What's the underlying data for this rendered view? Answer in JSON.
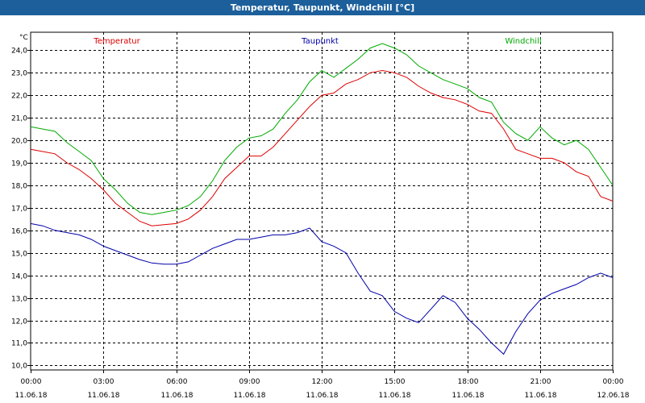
{
  "window": {
    "title": "Temperatur, Taupunkt, Windchill [°C]"
  },
  "chart_data": {
    "type": "line",
    "title": "Temperatur, Taupunkt, Windchill [°C]",
    "ylabel": "°C",
    "ylim": [
      9.8,
      24.8
    ],
    "xlim": [
      0,
      24
    ],
    "grid": true,
    "yticks": [
      {
        "value": 10.0,
        "label": "10,0"
      },
      {
        "value": 11.0,
        "label": "11,0"
      },
      {
        "value": 12.0,
        "label": "12,0"
      },
      {
        "value": 13.0,
        "label": "13,0"
      },
      {
        "value": 14.0,
        "label": "14,0"
      },
      {
        "value": 15.0,
        "label": "15,0"
      },
      {
        "value": 16.0,
        "label": "16,0"
      },
      {
        "value": 17.0,
        "label": "17,0"
      },
      {
        "value": 18.0,
        "label": "18,0"
      },
      {
        "value": 19.0,
        "label": "19,0"
      },
      {
        "value": 20.0,
        "label": "20,0"
      },
      {
        "value": 21.0,
        "label": "21,0"
      },
      {
        "value": 22.0,
        "label": "22,0"
      },
      {
        "value": 23.0,
        "label": "23,0"
      },
      {
        "value": 24.0,
        "label": "24,0"
      }
    ],
    "xticks": [
      {
        "value": 0,
        "time": "00:00",
        "date": "11.06.18"
      },
      {
        "value": 3,
        "time": "03:00",
        "date": "11.06.18"
      },
      {
        "value": 6,
        "time": "06:00",
        "date": "11.06.18"
      },
      {
        "value": 9,
        "time": "09:00",
        "date": "11.06.18"
      },
      {
        "value": 12,
        "time": "12:00",
        "date": "11.06.18"
      },
      {
        "value": 15,
        "time": "15:00",
        "date": "11.06.18"
      },
      {
        "value": 18,
        "time": "18:00",
        "date": "11.06.18"
      },
      {
        "value": 21,
        "time": "21:00",
        "date": "11.06.18"
      },
      {
        "value": 24,
        "time": "00:00",
        "date": "12.06.18"
      }
    ],
    "series": [
      {
        "name": "Temperatur",
        "color": "#dd0000",
        "legend_position": "left",
        "points": [
          [
            0,
            19.6
          ],
          [
            0.5,
            19.5
          ],
          [
            1,
            19.4
          ],
          [
            1.5,
            19.0
          ],
          [
            2,
            18.7
          ],
          [
            2.5,
            18.3
          ],
          [
            3,
            17.8
          ],
          [
            3.5,
            17.2
          ],
          [
            4,
            16.8
          ],
          [
            4.5,
            16.4
          ],
          [
            5,
            16.2
          ],
          [
            5.5,
            16.25
          ],
          [
            6,
            16.3
          ],
          [
            6.5,
            16.5
          ],
          [
            7,
            16.9
          ],
          [
            7.5,
            17.5
          ],
          [
            8,
            18.3
          ],
          [
            8.5,
            18.8
          ],
          [
            9,
            19.3
          ],
          [
            9.5,
            19.3
          ],
          [
            10,
            19.7
          ],
          [
            10.5,
            20.3
          ],
          [
            11,
            20.9
          ],
          [
            11.5,
            21.5
          ],
          [
            12,
            22.0
          ],
          [
            12.5,
            22.1
          ],
          [
            13,
            22.5
          ],
          [
            13.5,
            22.7
          ],
          [
            14,
            23.0
          ],
          [
            14.5,
            23.1
          ],
          [
            15,
            23.0
          ],
          [
            15.5,
            22.8
          ],
          [
            16,
            22.4
          ],
          [
            16.5,
            22.1
          ],
          [
            17,
            21.9
          ],
          [
            17.5,
            21.8
          ],
          [
            18,
            21.6
          ],
          [
            18.5,
            21.3
          ],
          [
            19,
            21.2
          ],
          [
            19.5,
            20.5
          ],
          [
            20,
            19.6
          ],
          [
            20.5,
            19.4
          ],
          [
            21,
            19.2
          ],
          [
            21.5,
            19.2
          ],
          [
            22,
            19.0
          ],
          [
            22.5,
            18.6
          ],
          [
            23,
            18.4
          ],
          [
            23.5,
            17.5
          ],
          [
            24,
            17.3
          ]
        ]
      },
      {
        "name": "Taupunkt",
        "color": "#0000aa",
        "legend_position": "center",
        "points": [
          [
            0,
            16.3
          ],
          [
            0.5,
            16.2
          ],
          [
            1,
            16.0
          ],
          [
            1.5,
            15.9
          ],
          [
            2,
            15.8
          ],
          [
            2.5,
            15.6
          ],
          [
            3,
            15.3
          ],
          [
            3.5,
            15.1
          ],
          [
            4,
            14.9
          ],
          [
            4.5,
            14.7
          ],
          [
            5,
            14.55
          ],
          [
            5.5,
            14.5
          ],
          [
            6,
            14.5
          ],
          [
            6.5,
            14.6
          ],
          [
            7,
            14.9
          ],
          [
            7.5,
            15.2
          ],
          [
            8,
            15.4
          ],
          [
            8.5,
            15.6
          ],
          [
            9,
            15.6
          ],
          [
            9.5,
            15.7
          ],
          [
            10,
            15.8
          ],
          [
            10.5,
            15.8
          ],
          [
            11,
            15.9
          ],
          [
            11.5,
            16.1
          ],
          [
            12,
            15.5
          ],
          [
            12.5,
            15.3
          ],
          [
            13,
            15.0
          ],
          [
            13.5,
            14.1
          ],
          [
            14,
            13.3
          ],
          [
            14.5,
            13.1
          ],
          [
            15,
            12.4
          ],
          [
            15.5,
            12.1
          ],
          [
            16,
            11.9
          ],
          [
            16.5,
            12.5
          ],
          [
            17,
            13.1
          ],
          [
            17.5,
            12.8
          ],
          [
            18,
            12.1
          ],
          [
            18.5,
            11.6
          ],
          [
            19,
            11.0
          ],
          [
            19.5,
            10.5
          ],
          [
            20,
            11.5
          ],
          [
            20.5,
            12.3
          ],
          [
            21,
            12.9
          ],
          [
            21.5,
            13.2
          ],
          [
            22,
            13.4
          ],
          [
            22.5,
            13.6
          ],
          [
            23,
            13.9
          ],
          [
            23.5,
            14.1
          ],
          [
            24,
            13.9
          ]
        ]
      },
      {
        "name": "Windchill",
        "color": "#00aa00",
        "legend_position": "right",
        "points": [
          [
            0,
            20.6
          ],
          [
            0.5,
            20.5
          ],
          [
            1,
            20.4
          ],
          [
            1.5,
            19.9
          ],
          [
            2,
            19.5
          ],
          [
            2.5,
            19.1
          ],
          [
            3,
            18.3
          ],
          [
            3.5,
            17.8
          ],
          [
            4,
            17.2
          ],
          [
            4.5,
            16.8
          ],
          [
            5,
            16.7
          ],
          [
            5.5,
            16.8
          ],
          [
            6,
            16.9
          ],
          [
            6.5,
            17.1
          ],
          [
            7,
            17.5
          ],
          [
            7.5,
            18.2
          ],
          [
            8,
            19.1
          ],
          [
            8.5,
            19.7
          ],
          [
            9,
            20.1
          ],
          [
            9.5,
            20.2
          ],
          [
            10,
            20.5
          ],
          [
            10.5,
            21.2
          ],
          [
            11,
            21.8
          ],
          [
            11.5,
            22.6
          ],
          [
            12,
            23.1
          ],
          [
            12.5,
            22.8
          ],
          [
            13,
            23.2
          ],
          [
            13.5,
            23.6
          ],
          [
            14,
            24.1
          ],
          [
            14.5,
            24.3
          ],
          [
            15,
            24.1
          ],
          [
            15.5,
            23.8
          ],
          [
            16,
            23.3
          ],
          [
            16.5,
            23.0
          ],
          [
            17,
            22.7
          ],
          [
            17.5,
            22.5
          ],
          [
            18,
            22.3
          ],
          [
            18.5,
            21.9
          ],
          [
            19,
            21.7
          ],
          [
            19.5,
            20.8
          ],
          [
            20,
            20.3
          ],
          [
            20.5,
            20.0
          ],
          [
            21,
            20.6
          ],
          [
            21.5,
            20.1
          ],
          [
            22,
            19.8
          ],
          [
            22.5,
            20.0
          ],
          [
            23,
            19.6
          ],
          [
            23.5,
            18.8
          ],
          [
            24,
            18.0
          ]
        ]
      }
    ]
  }
}
